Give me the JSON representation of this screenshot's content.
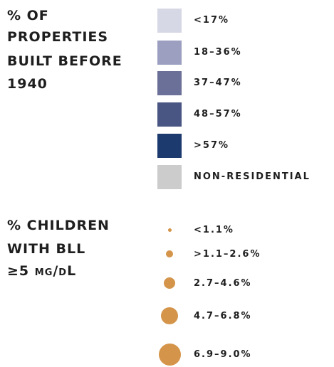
{
  "properties_legend": {
    "title": [
      "% OF",
      "PROPERTIES",
      "BUILT BEFORE",
      "1940"
    ],
    "items": [
      {
        "label": "<17%",
        "color": "#d7d8e5"
      },
      {
        "label": "18–36%",
        "color": "#9c9fbf"
      },
      {
        "label": "37–47%",
        "color": "#6a7097"
      },
      {
        "label": "48–57%",
        "color": "#495582"
      },
      {
        "label": ">57%",
        "color": "#1c3a6e"
      },
      {
        "label": "NON-RESIDENTIAL",
        "color": "#cccccc"
      }
    ]
  },
  "children_legend": {
    "title": [
      "% CHILDREN",
      "WITH BLL",
      "≥5 µg/dL"
    ],
    "color": "#d4944a",
    "items": [
      {
        "label": "<1.1%"
      },
      {
        "label": ">1.1–2.6%"
      },
      {
        "label": "2.7–4.6%"
      },
      {
        "label": "4.7–6.8%"
      },
      {
        "label": "6.9–9.0%"
      }
    ]
  }
}
